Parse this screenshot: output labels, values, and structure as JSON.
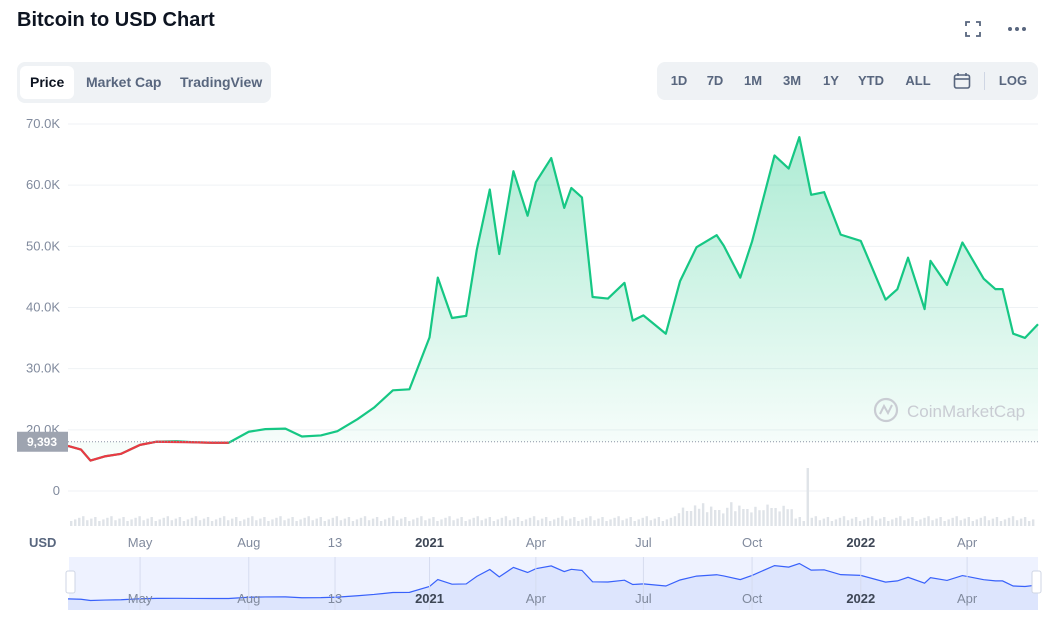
{
  "page": {
    "title": "Bitcoin to USD Chart"
  },
  "tabs": [
    "Price",
    "Market Cap",
    "TradingView"
  ],
  "active_tab": "Price",
  "ranges": [
    "1D",
    "7D",
    "1M",
    "3M",
    "1Y",
    "YTD",
    "ALL",
    "LOG"
  ],
  "icons": {
    "expand": "expand-icon",
    "more": "more-icon",
    "calendar": "calendar-icon",
    "watermark": "coinmarketcap-logo"
  },
  "watermark": "CoinMarketCap",
  "colors": {
    "up": "#16c784",
    "down": "#ea3943",
    "navigator_line": "#3861fb",
    "text_muted": "#58667e"
  },
  "chart_data": {
    "type": "area",
    "ylabel": "USD",
    "y_ticks": [
      "70.0K",
      "60.0K",
      "50.0K",
      "40.0K",
      "30.0K",
      "20.0K",
      "0"
    ],
    "ylim": [
      0,
      70000
    ],
    "baseline_value": 9393,
    "baseline_label": "9,393",
    "x_ticks": [
      "May",
      "Aug",
      "13",
      "2021",
      "Apr",
      "Jul",
      "Oct",
      "2022",
      "Apr"
    ],
    "navigator_ticks": [
      "May",
      "Aug",
      "13",
      "2021",
      "Apr",
      "Jul",
      "Oct",
      "2022",
      "Apr"
    ],
    "grid": true,
    "series": [
      {
        "x": [
          "2020-03-01",
          "2020-03-12",
          "2020-03-20",
          "2020-04-01",
          "2020-04-15",
          "2020-05-01",
          "2020-05-15",
          "2020-06-01",
          "2020-06-15",
          "2020-07-01",
          "2020-07-15",
          "2020-08-01",
          "2020-08-15",
          "2020-09-01",
          "2020-09-15",
          "2020-10-01",
          "2020-10-15",
          "2020-11-01",
          "2020-11-15",
          "2020-12-01",
          "2020-12-15",
          "2021-01-01",
          "2021-01-08",
          "2021-01-20",
          "2021-02-01",
          "2021-02-10",
          "2021-02-21",
          "2021-03-01",
          "2021-03-13",
          "2021-03-25",
          "2021-04-01",
          "2021-04-14",
          "2021-04-25",
          "2021-05-01",
          "2021-05-10",
          "2021-05-19",
          "2021-06-01",
          "2021-06-15",
          "2021-06-22",
          "2021-07-01",
          "2021-07-20",
          "2021-08-01",
          "2021-08-15",
          "2021-09-01",
          "2021-09-07",
          "2021-09-21",
          "2021-10-01",
          "2021-10-20",
          "2021-11-01",
          "2021-11-10",
          "2021-11-20",
          "2021-12-01",
          "2021-12-15",
          "2022-01-01",
          "2022-01-22",
          "2022-02-01",
          "2022-02-10",
          "2022-02-24",
          "2022-03-01",
          "2022-03-15",
          "2022-03-28",
          "2022-04-01",
          "2022-04-15",
          "2022-04-25",
          "2022-05-01",
          "2022-05-10",
          "2022-05-20",
          "2022-05-31"
        ],
        "values": [
          8600,
          7900,
          5800,
          6600,
          7100,
          8800,
          9400,
          9500,
          9300,
          9200,
          9200,
          11300,
          11800,
          11900,
          10400,
          10600,
          11400,
          13700,
          15900,
          19200,
          19400,
          29300,
          40700,
          33000,
          33400,
          46000,
          57500,
          45200,
          61000,
          52500,
          58900,
          63500,
          54000,
          57800,
          56000,
          37000,
          36700,
          39700,
          32500,
          33500,
          30000,
          40000,
          46500,
          48800,
          46800,
          40700,
          47600,
          64000,
          61500,
          67500,
          56500,
          57000,
          48900,
          47700,
          36500,
          38500,
          44500,
          34700,
          43900,
          39300,
          47400,
          45900,
          40500,
          38500,
          38500,
          30000,
          29200,
          31800
        ]
      }
    ],
    "volume": "normalized trading volume bars (no printed values)"
  }
}
